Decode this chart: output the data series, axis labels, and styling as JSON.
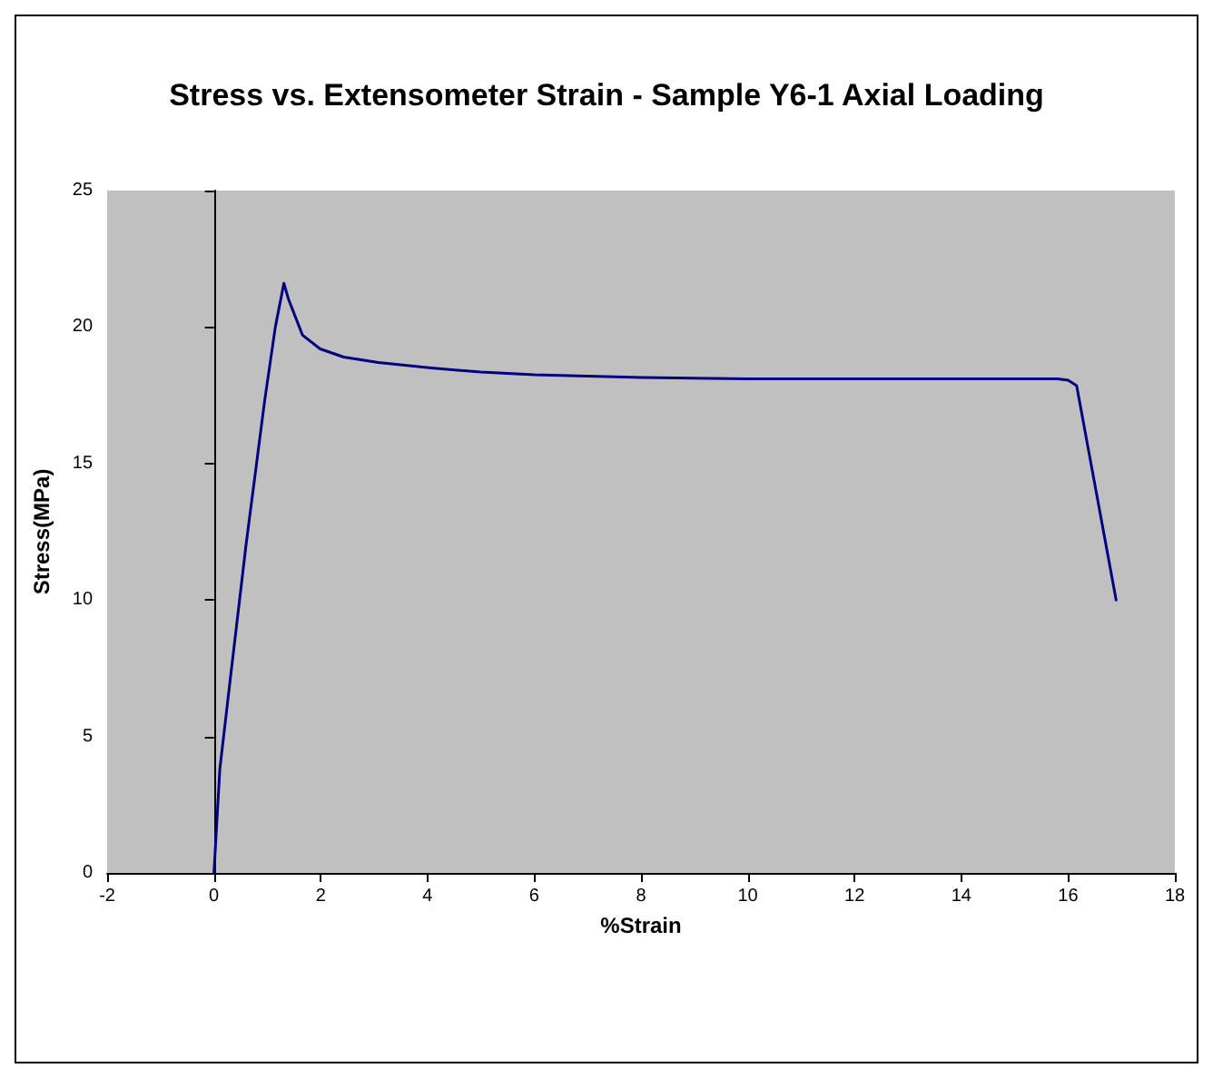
{
  "chart_data": {
    "type": "line",
    "title": "Stress vs. Extensometer Strain - Sample Y6-1 Axial Loading",
    "xlabel": "%Strain",
    "ylabel": "Stress(MPa)",
    "series": [
      {
        "color": "#000080",
        "x": [
          0,
          0.11,
          0.3,
          0.6,
          0.95,
          1.15,
          1.31,
          1.4,
          1.5,
          1.66,
          1.99,
          2.43,
          3.08,
          4.07,
          5,
          6,
          8,
          10,
          12,
          14,
          15.8,
          16.0,
          16.16,
          16.9
        ],
        "values": [
          0,
          3.8,
          7,
          12,
          17.3,
          20,
          21.6,
          21,
          20.5,
          19.7,
          19.2,
          18.9,
          18.7,
          18.5,
          18.35,
          18.25,
          18.15,
          18.1,
          18.1,
          18.1,
          18.1,
          18.05,
          17.85,
          10
        ]
      }
    ],
    "xlim": [
      -2,
      18
    ],
    "xticks": [
      -2,
      0,
      2,
      4,
      6,
      8,
      10,
      12,
      14,
      16,
      18
    ],
    "ylim": [
      0,
      25
    ],
    "yticks": [
      0,
      5,
      10,
      15,
      20,
      25
    ],
    "marker": "none",
    "line_style": "solid"
  }
}
